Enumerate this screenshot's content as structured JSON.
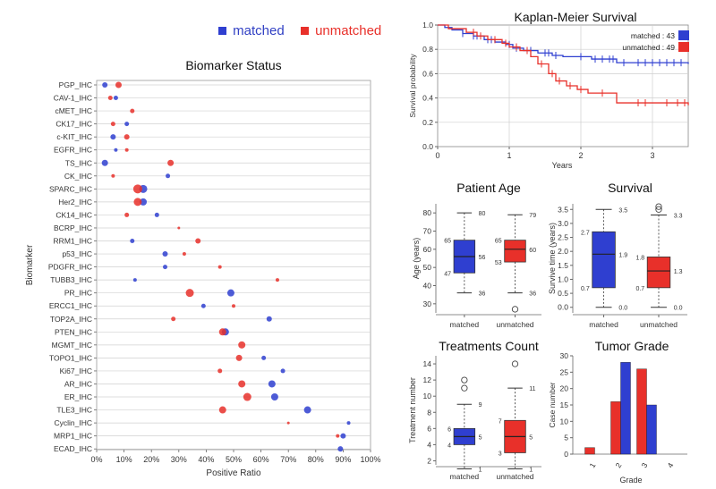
{
  "colors": {
    "matched": "#2f3fd0",
    "unmatched": "#e8302a",
    "grid": "#c8c8c8",
    "axis": "#555555"
  },
  "legend": {
    "matched": "matched",
    "unmatched": "unmatched"
  },
  "chart_data": [
    {
      "id": "biomarker",
      "type": "scatter",
      "title": "Biomarker Status",
      "xlabel": "Positive Ratio",
      "ylabel": "Biomarker",
      "xlim": [
        0,
        100
      ],
      "xticks": [
        "0%",
        "10%",
        "20%",
        "30%",
        "40%",
        "50%",
        "60%",
        "70%",
        "80%",
        "90%",
        "100%"
      ],
      "categories": [
        "PGP_IHC",
        "CAV-1_IHC",
        "cMET_IHC",
        "CK17_IHC",
        "c-KIT_IHC",
        "EGFR_IHC",
        "TS_IHC",
        "CK_IHC",
        "SPARC_IHC",
        "Her2_IHC",
        "CK14_IHC",
        "BCRP_IHC",
        "RRM1_IHC",
        "p53_IHC",
        "PDGFR_IHC",
        "TUBB3_IHC",
        "PR_IHC",
        "ERCC1_IHC",
        "TOP2A_IHC",
        "PTEN_IHC",
        "MGMT_IHC",
        "TOPO1_IHC",
        "Ki67_IHC",
        "AR_IHC",
        "ER_IHC",
        "TLE3_IHC",
        "Cyclin_IHC",
        "MRP1_IHC",
        "ECAD_IHC"
      ],
      "series": [
        {
          "name": "matched",
          "x": [
            3,
            7,
            null,
            11,
            6,
            7,
            3,
            26,
            17,
            17,
            22,
            null,
            13,
            25,
            25,
            14,
            49,
            39,
            63,
            47,
            null,
            61,
            68,
            64,
            65,
            77,
            92,
            90,
            89
          ],
          "size": [
            3,
            2.5,
            0,
            2.5,
            3,
            2,
            3.5,
            2.5,
            4.5,
            4,
            2.5,
            0,
            2.5,
            3,
            2.5,
            2,
            4,
            2.5,
            3,
            4,
            0,
            2.5,
            2.5,
            4,
            4,
            4,
            2,
            3,
            3
          ]
        },
        {
          "name": "unmatched",
          "x": [
            8,
            5,
            13,
            6,
            11,
            11,
            27,
            6,
            15,
            15,
            11,
            30,
            37,
            32,
            45,
            66,
            34,
            50,
            28,
            46,
            53,
            52,
            45,
            53,
            55,
            46,
            70,
            88,
            null
          ],
          "size": [
            3.5,
            2.5,
            2.5,
            2.5,
            3,
            2,
            3.5,
            2,
            5,
            4.5,
            2.5,
            1.5,
            3,
            2,
            2,
            2,
            4.5,
            2,
            2.5,
            4,
            4,
            3.5,
            2.5,
            4,
            4.5,
            4,
            1.5,
            2,
            0
          ]
        }
      ]
    },
    {
      "id": "km",
      "type": "line",
      "title": "Kaplan-Meier Survival",
      "xlabel": "Years",
      "ylabel": "Survival probability",
      "xlim": [
        0,
        3.5
      ],
      "ylim": [
        0,
        1
      ],
      "xticks": [
        "0",
        "1",
        "2",
        "3"
      ],
      "yticks": [
        "0.0",
        "0.2",
        "0.4",
        "0.6",
        "0.8",
        "1.0"
      ],
      "legend": [
        {
          "label": "matched : 43"
        },
        {
          "label": "unmatched : 49"
        }
      ],
      "series": [
        {
          "name": "matched",
          "x": [
            0,
            0.1,
            0.2,
            0.35,
            0.5,
            0.65,
            0.8,
            0.95,
            1.05,
            1.2,
            1.4,
            1.6,
            1.75,
            1.9,
            2.15,
            2.5,
            3.5
          ],
          "y": [
            1,
            0.98,
            0.96,
            0.93,
            0.91,
            0.88,
            0.86,
            0.84,
            0.81,
            0.79,
            0.77,
            0.75,
            0.74,
            0.74,
            0.72,
            0.69,
            0.68
          ],
          "censor_x": [
            0.35,
            0.5,
            0.55,
            0.7,
            0.75,
            1.0,
            1.1,
            1.3,
            1.5,
            1.55,
            1.65,
            2.0,
            2.2,
            2.3,
            2.4,
            2.45,
            2.6,
            2.8,
            2.9,
            3.0,
            3.1,
            3.2,
            3.3,
            3.4
          ]
        },
        {
          "name": "unmatched",
          "x": [
            0,
            0.15,
            0.4,
            0.55,
            0.7,
            0.9,
            1.0,
            1.15,
            1.3,
            1.4,
            1.55,
            1.65,
            1.8,
            1.95,
            2.1,
            2.5,
            3.5
          ],
          "y": [
            1,
            0.97,
            0.94,
            0.91,
            0.88,
            0.85,
            0.82,
            0.79,
            0.74,
            0.68,
            0.6,
            0.54,
            0.5,
            0.47,
            0.44,
            0.36,
            0.34
          ],
          "censor_x": [
            0.5,
            0.6,
            0.8,
            0.95,
            1.1,
            1.25,
            1.45,
            1.6,
            1.7,
            1.85,
            2.0,
            2.3,
            2.8,
            2.9,
            3.2,
            3.35,
            3.45
          ]
        }
      ]
    },
    {
      "id": "age",
      "type": "box",
      "title": "Patient Age",
      "ylabel": "Age (years)",
      "ylim": [
        25,
        85
      ],
      "yticks": [
        "30",
        "40",
        "50",
        "60",
        "70",
        "80"
      ],
      "categories": [
        "matched",
        "unmatched"
      ],
      "boxes": [
        {
          "min": 36,
          "q1": 47,
          "median": 56,
          "q3": 65,
          "max": 80,
          "outliers": [],
          "labels": [
            "80",
            "65",
            "56",
            "47",
            "36"
          ]
        },
        {
          "min": 36,
          "q1": 53,
          "median": 60,
          "q3": 65,
          "max": 79,
          "outliers": [
            27
          ],
          "labels": [
            "79",
            "65",
            "60",
            "53",
            "36"
          ]
        }
      ]
    },
    {
      "id": "survival",
      "type": "box",
      "title": "Survival",
      "ylabel": "Survive time (years)",
      "ylim": [
        -0.2,
        3.7
      ],
      "yticks": [
        "0.0",
        "0.5",
        "1.0",
        "1.5",
        "2.0",
        "2.5",
        "3.0",
        "3.5"
      ],
      "categories": [
        "matched",
        "unmatched"
      ],
      "boxes": [
        {
          "min": 0.0,
          "q1": 0.7,
          "median": 1.9,
          "q3": 2.7,
          "max": 3.5,
          "outliers": [],
          "labels": [
            "3.5",
            "2.7",
            "1.9",
            "0.7",
            "0.0"
          ]
        },
        {
          "min": 0.0,
          "q1": 0.7,
          "median": 1.3,
          "q3": 1.8,
          "max": 3.3,
          "outliers": [
            3.5,
            3.6
          ],
          "labels": [
            "3.3",
            "1.8",
            "1.3",
            "0.7",
            "0.0"
          ]
        }
      ]
    },
    {
      "id": "treat",
      "type": "box",
      "title": "Treatments Count",
      "ylabel": "Treatment number",
      "ylim": [
        1.5,
        15
      ],
      "yticks": [
        "2",
        "4",
        "6",
        "8",
        "10",
        "12",
        "14"
      ],
      "categories": [
        "matched",
        "unmatched"
      ],
      "boxes": [
        {
          "min": 1,
          "q1": 4,
          "median": 5,
          "q3": 6,
          "max": 9,
          "outliers": [
            11,
            12
          ],
          "labels": [
            "9",
            "6",
            "5",
            "4",
            "1"
          ]
        },
        {
          "min": 1,
          "q1": 3,
          "median": 5,
          "q3": 7,
          "max": 11,
          "outliers": [
            14
          ],
          "labels": [
            "11",
            "7",
            "5",
            "3",
            "1"
          ]
        }
      ]
    },
    {
      "id": "grade",
      "type": "bar",
      "title": "Tumor Grade",
      "xlabel": "Grade",
      "ylabel": "Case number",
      "ylim": [
        0,
        30
      ],
      "yticks": [
        "0",
        "5",
        "10",
        "15",
        "20",
        "25",
        "30"
      ],
      "categories": [
        "1",
        "2",
        "3",
        "4"
      ],
      "series": [
        {
          "name": "unmatched",
          "values": [
            2,
            16,
            26,
            0
          ]
        },
        {
          "name": "matched",
          "values": [
            0,
            28,
            15,
            0
          ]
        }
      ]
    }
  ]
}
